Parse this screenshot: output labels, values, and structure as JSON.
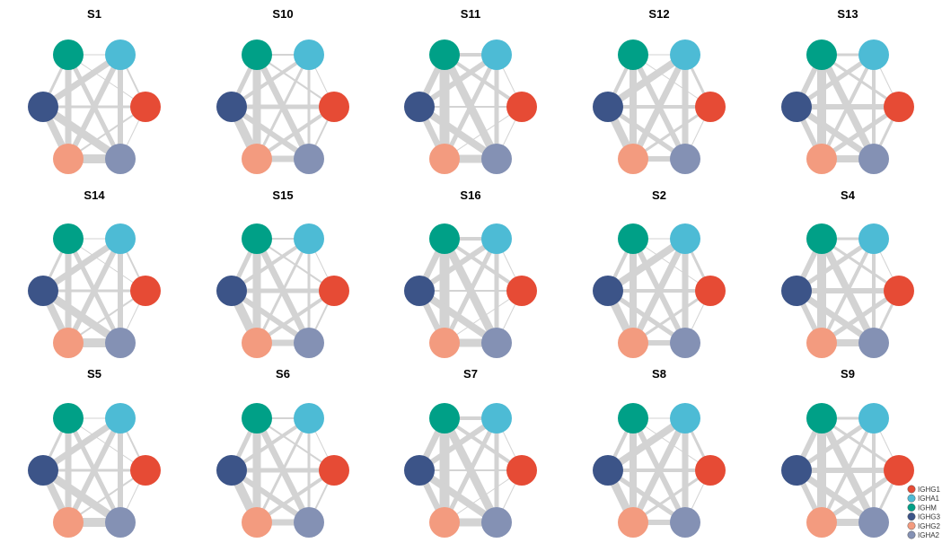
{
  "node_colors": {
    "IGHM": "#00A087",
    "IGHA1": "#4DBBD5",
    "IGHG1": "#E64B35",
    "IGHG3": "#3C5488",
    "IGHG2": "#F39B7F",
    "IGHA2": "#8491B4"
  },
  "edge_color": "#d3d3d3",
  "node_order": [
    "IGHM",
    "IGHA1",
    "IGHG1",
    "IGHA2",
    "IGHG2",
    "IGHG3"
  ],
  "panels": [
    {
      "title": "S1"
    },
    {
      "title": "S10"
    },
    {
      "title": "S11"
    },
    {
      "title": "S12"
    },
    {
      "title": "S13"
    },
    {
      "title": "S14"
    },
    {
      "title": "S15"
    },
    {
      "title": "S16"
    },
    {
      "title": "S2"
    },
    {
      "title": "S4"
    },
    {
      "title": "S5"
    },
    {
      "title": "S6"
    },
    {
      "title": "S7"
    },
    {
      "title": "S8"
    },
    {
      "title": "S9"
    }
  ],
  "legend": {
    "items": [
      {
        "label": "IGHG1",
        "color": "#E64B35"
      },
      {
        "label": "IGHA1",
        "color": "#4DBBD5"
      },
      {
        "label": "IGHM",
        "color": "#00A087"
      },
      {
        "label": "IGHG3",
        "color": "#3C5488"
      },
      {
        "label": "IGHG2",
        "color": "#F39B7F"
      },
      {
        "label": "IGHA2",
        "color": "#8491B4"
      }
    ]
  }
}
